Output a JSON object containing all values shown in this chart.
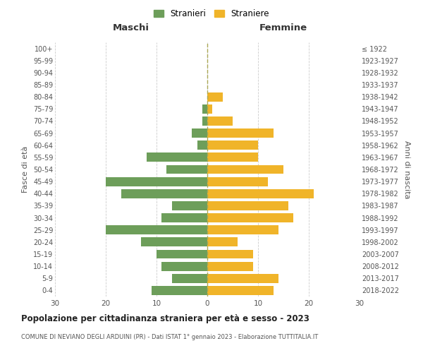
{
  "age_groups": [
    "0-4",
    "5-9",
    "10-14",
    "15-19",
    "20-24",
    "25-29",
    "30-34",
    "35-39",
    "40-44",
    "45-49",
    "50-54",
    "55-59",
    "60-64",
    "65-69",
    "70-74",
    "75-79",
    "80-84",
    "85-89",
    "90-94",
    "95-99",
    "100+"
  ],
  "birth_years": [
    "2018-2022",
    "2013-2017",
    "2008-2012",
    "2003-2007",
    "1998-2002",
    "1993-1997",
    "1988-1992",
    "1983-1987",
    "1978-1982",
    "1973-1977",
    "1968-1972",
    "1963-1967",
    "1958-1962",
    "1953-1957",
    "1948-1952",
    "1943-1947",
    "1938-1942",
    "1933-1937",
    "1928-1932",
    "1923-1927",
    "≤ 1922"
  ],
  "maschi": [
    11,
    7,
    9,
    10,
    13,
    20,
    9,
    7,
    17,
    20,
    8,
    12,
    2,
    3,
    1,
    1,
    0,
    0,
    0,
    0,
    0
  ],
  "femmine": [
    13,
    14,
    9,
    9,
    6,
    14,
    17,
    16,
    21,
    12,
    15,
    10,
    10,
    13,
    5,
    1,
    3,
    0,
    0,
    0,
    0
  ],
  "maschi_color": "#6d9e5a",
  "femmine_color": "#f0b429",
  "title": "Popolazione per cittadinanza straniera per età e sesso - 2023",
  "subtitle": "COMUNE DI NEVIANO DEGLI ARDUINI (PR) - Dati ISTAT 1° gennaio 2023 - Elaborazione TUTTITALIA.IT",
  "legend_maschi": "Stranieri",
  "legend_femmine": "Straniere",
  "xlabel_left": "Maschi",
  "xlabel_right": "Femmine",
  "ylabel_left": "Fasce di età",
  "ylabel_right": "Anni di nascita",
  "xlim": 30,
  "bg_color": "#ffffff",
  "grid_color": "#cccccc"
}
